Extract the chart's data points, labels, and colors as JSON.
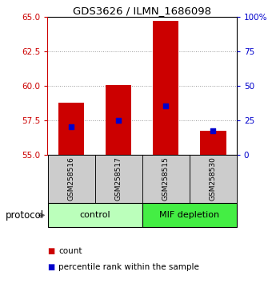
{
  "title": "GDS3626 / ILMN_1686098",
  "samples": [
    "GSM258516",
    "GSM258517",
    "GSM258515",
    "GSM258530"
  ],
  "bar_values": [
    58.8,
    60.05,
    64.75,
    56.75
  ],
  "bar_bottom": 55.0,
  "percentile_values": [
    57.05,
    57.48,
    58.55,
    56.72
  ],
  "ylim_left": [
    55,
    65
  ],
  "ylim_right": [
    0,
    100
  ],
  "yticks_left": [
    55,
    57.5,
    60,
    62.5,
    65
  ],
  "yticks_right": [
    0,
    25,
    50,
    75,
    100
  ],
  "ytick_labels_right": [
    "0",
    "25",
    "50",
    "75",
    "100%"
  ],
  "bar_color": "#cc0000",
  "percentile_color": "#0000cc",
  "bar_width": 0.55,
  "control_color": "#bbffbb",
  "mif_color": "#44ee44",
  "sample_box_color": "#cccccc",
  "left_axis_color": "#cc0000",
  "right_axis_color": "#0000cc",
  "legend_count_color": "#cc0000",
  "legend_percentile_color": "#0000cc",
  "protocol_label": "protocol",
  "control_label": "control",
  "mif_label": "MIF depletion"
}
